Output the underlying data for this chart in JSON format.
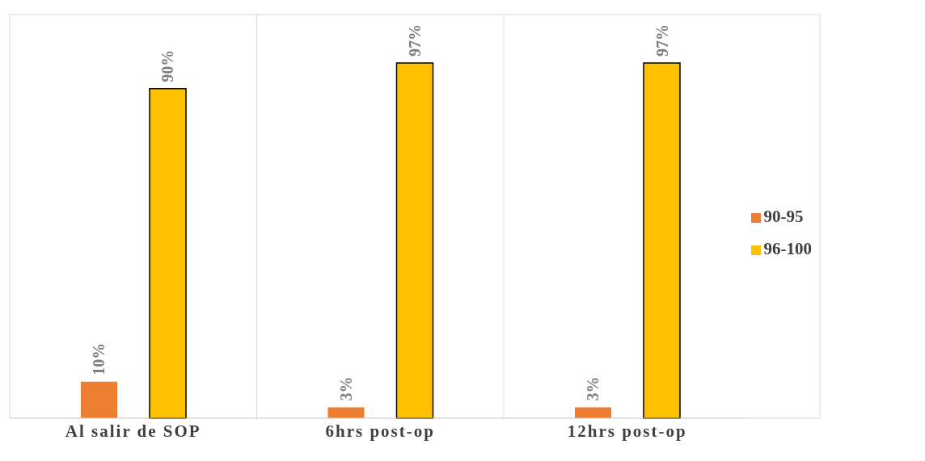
{
  "chart_data": {
    "type": "bar",
    "categories": [
      "Al salir de SOP",
      "6hrs post-op",
      "12hrs post-op"
    ],
    "series": [
      {
        "name": "90-95",
        "color": "#ed7d31",
        "values": [
          10,
          3,
          3
        ],
        "value_labels": [
          "10%",
          "3%",
          "3%"
        ]
      },
      {
        "name": "96-100",
        "color": "#ffc000",
        "values": [
          90,
          97,
          97
        ],
        "value_labels": [
          "90%",
          "97%",
          "97%"
        ]
      }
    ],
    "tick_labels": "x",
    "grid": "x",
    "legend": "right"
  }
}
